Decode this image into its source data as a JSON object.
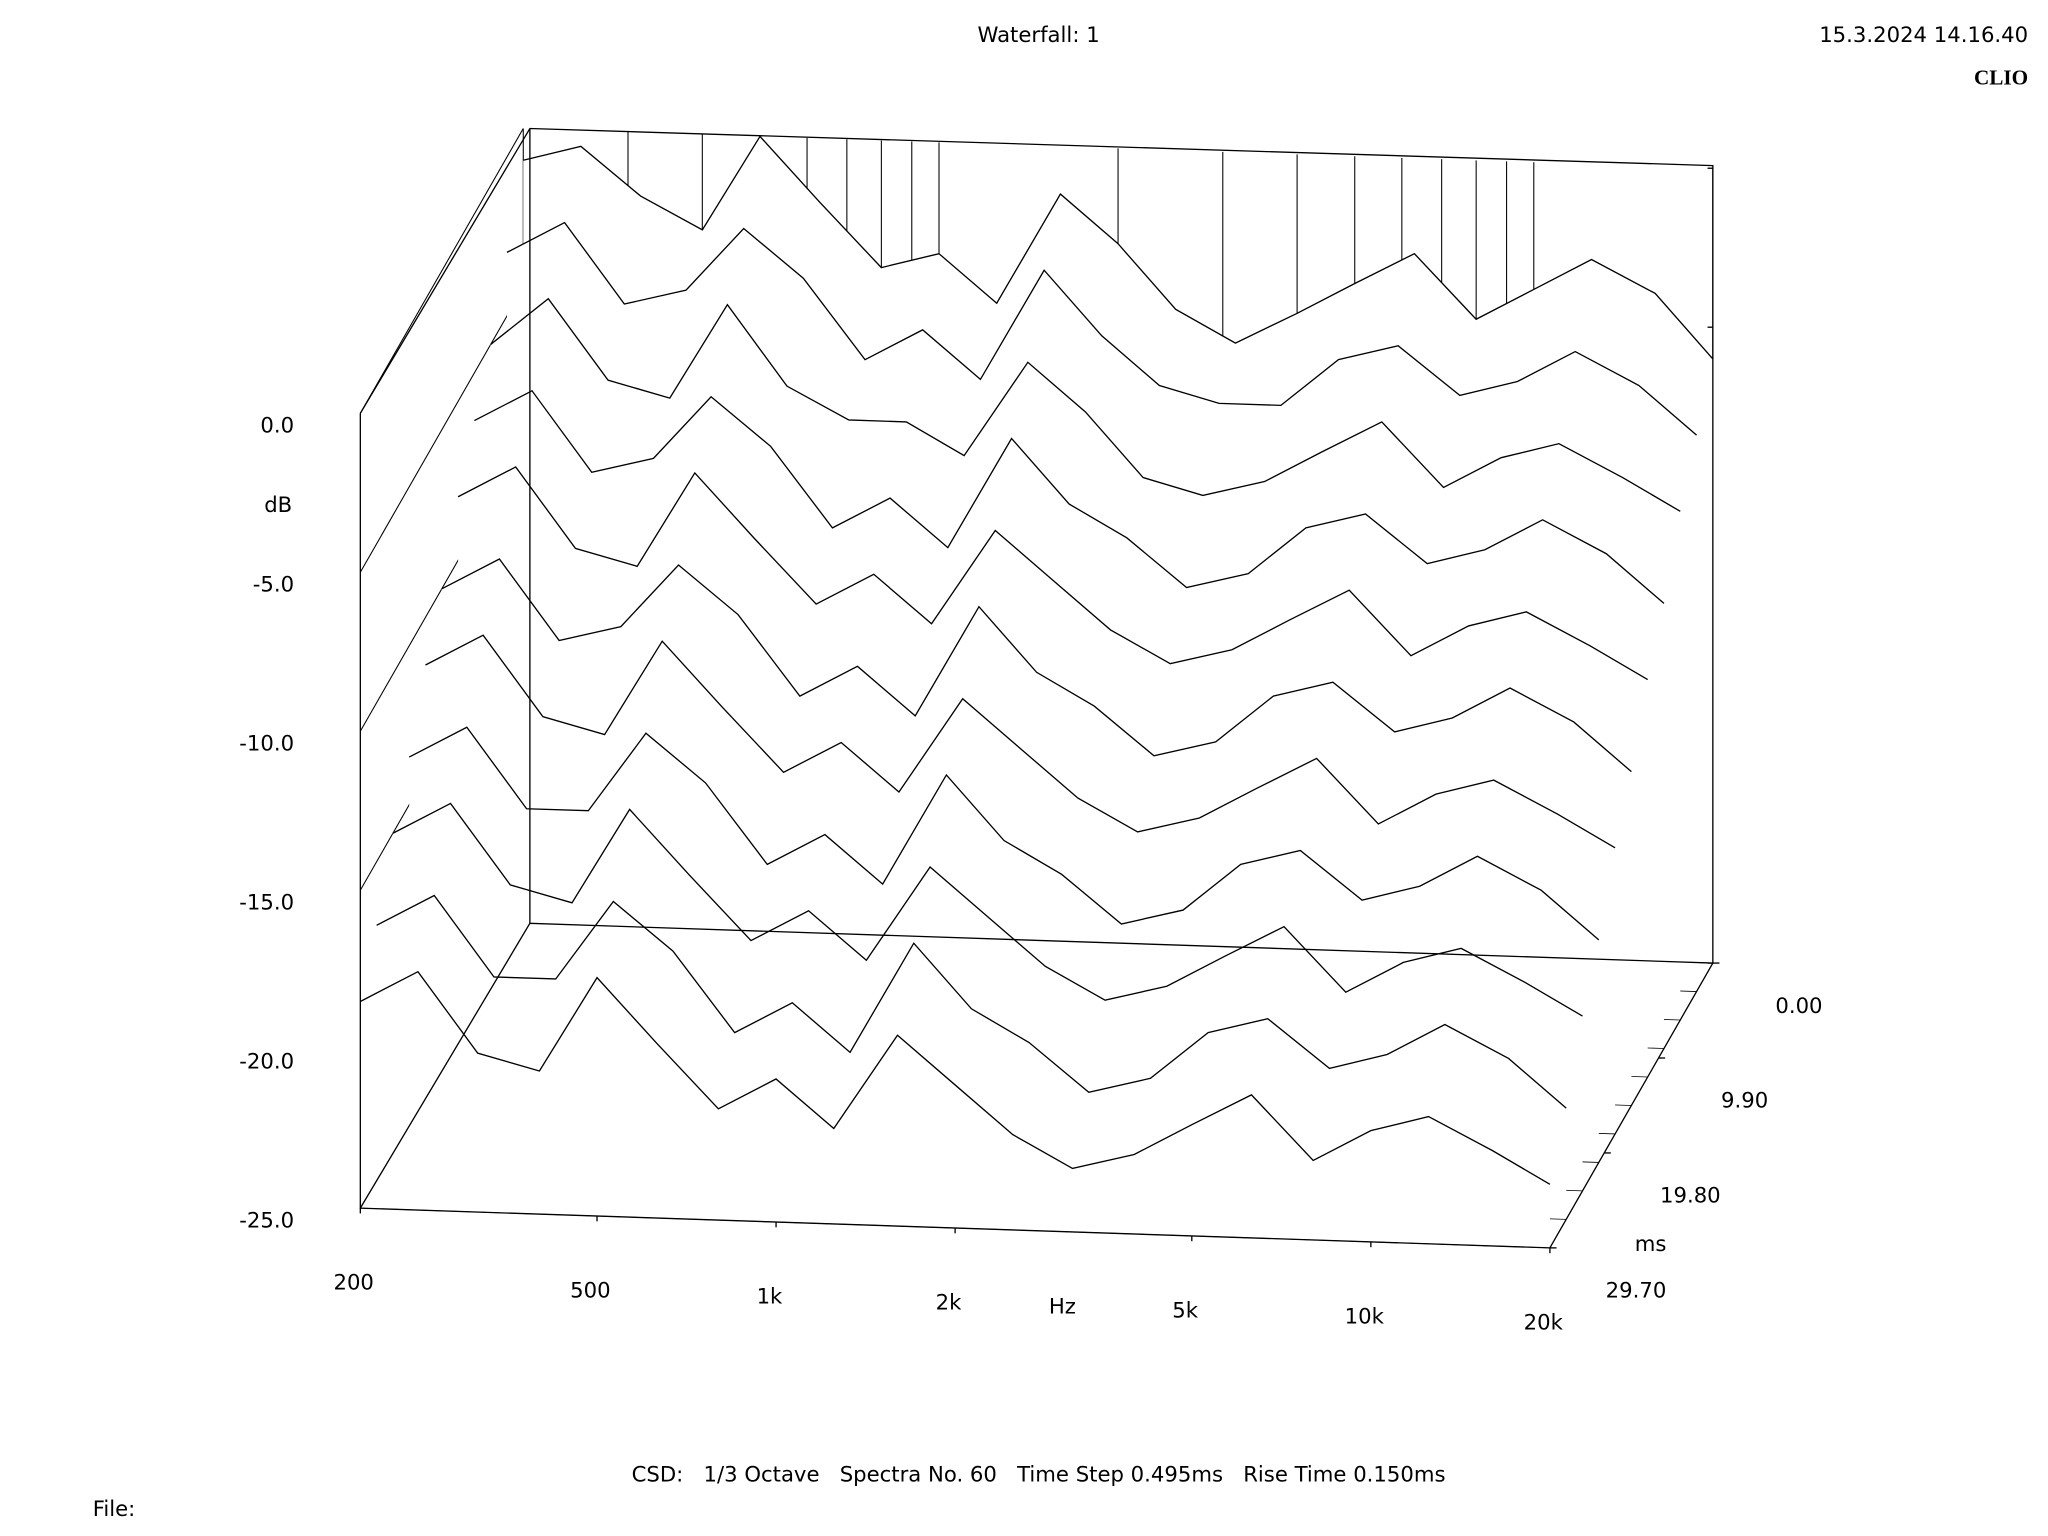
{
  "header": {
    "title": "Waterfall: 1",
    "timestamp": "15.3.2024 14.16.40",
    "brand": "CLIO"
  },
  "chart_data": {
    "type": "waterfall",
    "log_x": true,
    "y_label": "dB",
    "x_label": "Hz",
    "z_label": "ms",
    "x": [
      200,
      250,
      315,
      400,
      500,
      630,
      800,
      1000,
      1250,
      1600,
      2000,
      2500,
      3150,
      4000,
      5000,
      6300,
      8000,
      10000,
      12500,
      16000,
      20000
    ],
    "z": [
      0,
      2.97,
      5.94,
      8.91,
      11.88,
      14.85,
      17.82,
      20.79,
      23.76,
      26.73,
      29.7
    ],
    "series": [
      {
        "values": [
          -1,
          -0.5,
          -2,
          -3,
          0,
          -2,
          -4,
          -3.5,
          -5,
          -1.5,
          -3,
          -5,
          -6,
          -5,
          -4,
          -3,
          -5,
          -4,
          -3,
          -4,
          -6
        ]
      },
      {
        "values": [
          -3,
          -2,
          -4.5,
          -4,
          -2,
          -3.5,
          -6,
          -5,
          -6.5,
          -3,
          -5,
          -6.5,
          -7,
          -7,
          -5.5,
          -5,
          -6.5,
          -6,
          -5,
          -6,
          -7.5
        ]
      },
      {
        "values": [
          -5,
          -3.5,
          -6,
          -6.5,
          -3.5,
          -6,
          -7,
          -7,
          -8,
          -5,
          -6.5,
          -8.5,
          -9,
          -8.5,
          -7.5,
          -6.5,
          -8.5,
          -7.5,
          -7,
          -8,
          -9
        ]
      },
      {
        "values": [
          -6.5,
          -5.5,
          -8,
          -7.5,
          -5.5,
          -7,
          -9.5,
          -8.5,
          -10,
          -6.5,
          -8.5,
          -9.5,
          -11,
          -10.5,
          -9,
          -8.5,
          -10,
          -9.5,
          -8.5,
          -9.5,
          -11
        ]
      },
      {
        "values": [
          -8,
          -7,
          -9.5,
          -10,
          -7,
          -9,
          -11,
          -10,
          -11.5,
          -8.5,
          -10,
          -11.5,
          -12.5,
          -12,
          -11,
          -10,
          -12,
          -11,
          -10.5,
          -11.5,
          -12.5
        ]
      },
      {
        "values": [
          -10,
          -9,
          -11.5,
          -11,
          -9,
          -10.5,
          -13,
          -12,
          -13.5,
          -10,
          -12,
          -13,
          -14.5,
          -14,
          -12.5,
          -12,
          -13.5,
          -13,
          -12,
          -13,
          -14.5
        ]
      },
      {
        "values": [
          -11.5,
          -10.5,
          -13,
          -13.5,
          -10.5,
          -12.5,
          -14.5,
          -13.5,
          -15,
          -12,
          -13.5,
          -15,
          -16,
          -15.5,
          -14.5,
          -13.5,
          -15.5,
          -14.5,
          -14,
          -15,
          -16
        ]
      },
      {
        "values": [
          -13.5,
          -12.5,
          -15,
          -15,
          -12.5,
          -14,
          -16.5,
          -15.5,
          -17,
          -13.5,
          -15.5,
          -16.5,
          -18,
          -17.5,
          -16,
          -15.5,
          -17,
          -16.5,
          -15.5,
          -16.5,
          -18
        ]
      },
      {
        "values": [
          -15,
          -14,
          -16.5,
          -17,
          -14,
          -16,
          -18,
          -17,
          -18.5,
          -15.5,
          -17,
          -18.5,
          -19.5,
          -19,
          -18,
          -17,
          -19,
          -18,
          -17.5,
          -18.5,
          -19.5
        ]
      },
      {
        "values": [
          -17,
          -16,
          -18.5,
          -18.5,
          -16,
          -17.5,
          -20,
          -19,
          -20.5,
          -17,
          -19,
          -20,
          -21.5,
          -21,
          -19.5,
          -19,
          -20.5,
          -20,
          -19,
          -20,
          -21.5
        ]
      },
      {
        "values": [
          -18.5,
          -17.5,
          -20,
          -20.5,
          -17.5,
          -19.5,
          -21.5,
          -20.5,
          -22,
          -19,
          -20.5,
          -22,
          -23,
          -22.5,
          -21.5,
          -20.5,
          -22.5,
          -21.5,
          -21,
          -22,
          -23
        ]
      }
    ],
    "color": "#000000",
    "xlim": [
      200,
      20000
    ],
    "xticks": [
      200,
      500,
      {
        "value": 1000,
        "label": "1k"
      },
      {
        "value": 2000,
        "label": "2k"
      },
      {
        "value": 5000,
        "label": "5k"
      },
      {
        "value": 10000,
        "label": "10k"
      },
      {
        "value": 20000,
        "label": "20k"
      }
    ],
    "xgrid": [
      200,
      300,
      400,
      500,
      600,
      700,
      800,
      900,
      1000,
      2000,
      3000,
      4000,
      5000,
      6000,
      7000,
      8000,
      9000,
      10000,
      20000
    ],
    "ylim": [
      -25,
      0
    ],
    "yticks": [
      {
        "value": 0,
        "label": "0.0"
      },
      {
        "value": -5,
        "label": "-5.0"
      },
      {
        "value": -10,
        "label": "-10.0"
      },
      {
        "value": -15,
        "label": "-15.0"
      },
      {
        "value": -20,
        "label": "-20.0"
      },
      {
        "value": -25,
        "label": "-25.0"
      }
    ],
    "zlim": [
      0,
      29.7
    ],
    "zticks": [
      {
        "value": 0,
        "label": "0.00"
      },
      {
        "value": 9.9,
        "label": "9.90"
      },
      {
        "value": 19.8,
        "label": "19.80"
      },
      {
        "value": 29.7,
        "label": "29.70"
      }
    ]
  },
  "footer": {
    "settings": "CSD:   1/3 Octave   Spectra No. 60   Time Step 0.495ms   Rise Time 0.150ms",
    "file": "File:"
  }
}
